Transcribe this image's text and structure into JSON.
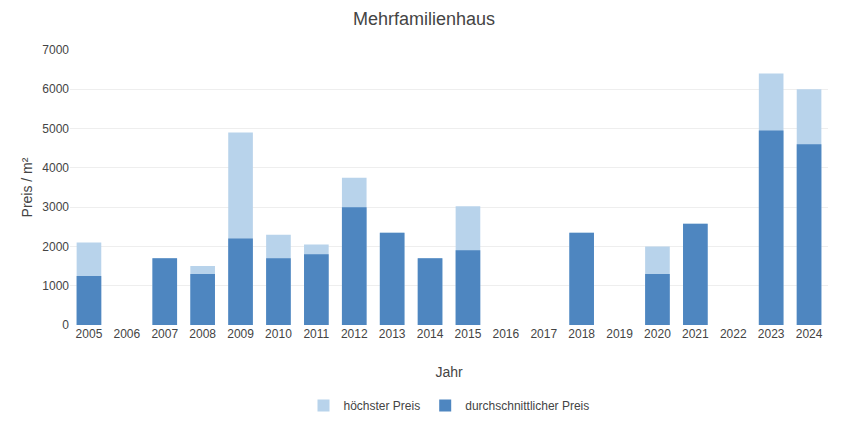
{
  "chart_data": {
    "type": "bar",
    "title": "Mehrfamilienhaus",
    "xlabel": "Jahr",
    "ylabel": "Preis / m²",
    "categories": [
      2005,
      2006,
      2007,
      2008,
      2009,
      2010,
      2011,
      2012,
      2013,
      2014,
      2015,
      2016,
      2017,
      2018,
      2019,
      2020,
      2021,
      2022,
      2023,
      2024
    ],
    "series": [
      {
        "name": "höchster Preis",
        "color": "#b8d3eb",
        "values": [
          2100,
          0,
          1700,
          1500,
          4900,
          2300,
          2050,
          3750,
          2350,
          1700,
          3020,
          0,
          0,
          2350,
          0,
          2000,
          2580,
          0,
          6400,
          6000
        ]
      },
      {
        "name": "durchschnittlicher Preis",
        "color": "#4e86c0",
        "values": [
          1250,
          0,
          1700,
          1300,
          2200,
          1700,
          1800,
          3000,
          2350,
          1700,
          1900,
          0,
          0,
          2350,
          0,
          1300,
          2580,
          0,
          4950,
          4600
        ]
      }
    ],
    "ylim": [
      0,
      7000
    ],
    "yticks": [
      0,
      1000,
      2000,
      3000,
      4000,
      5000,
      6000,
      7000
    ],
    "grid": true,
    "legend": "bottom"
  }
}
